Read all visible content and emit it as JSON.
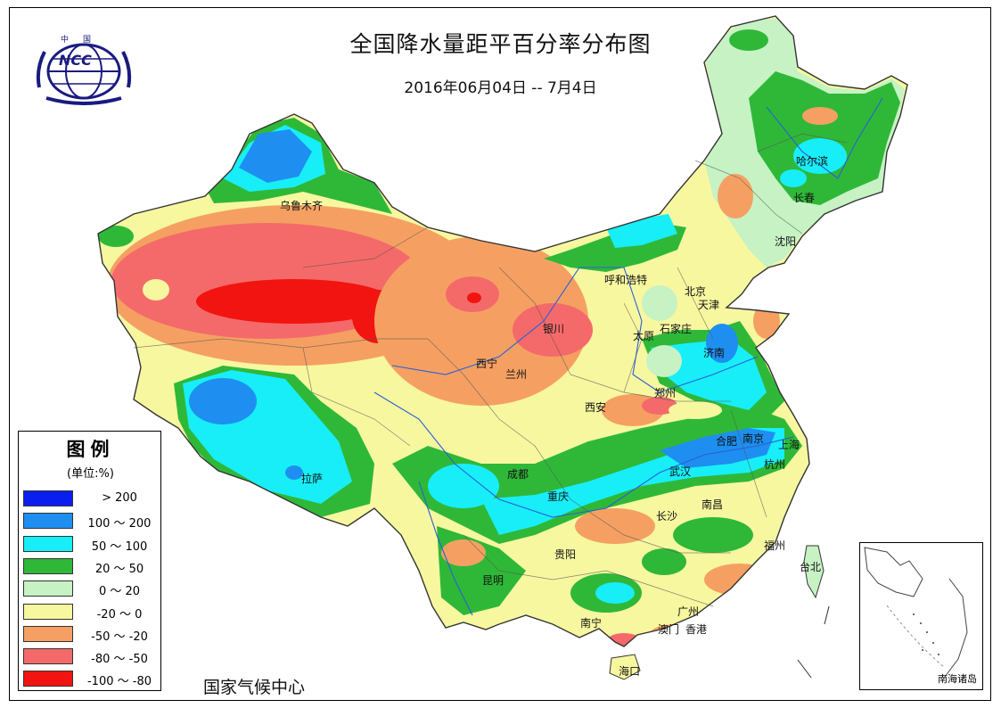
{
  "header": {
    "title": "全国降水量距平百分率分布图",
    "subtitle": "2016年06月04日 -- 7月4日",
    "logo_text": "NCC",
    "logo_top": "中国"
  },
  "legend": {
    "title": "图例",
    "unit": "(单位:%)",
    "items": [
      {
        "label": "> 200",
        "color": "#0a1ef0"
      },
      {
        "label": "100 ～ 200",
        "color": "#1e8ff0"
      },
      {
        "label": "50 ～ 100",
        "color": "#18eef8"
      },
      {
        "label": "20 ～ 50",
        "color": "#2fb838"
      },
      {
        "label": "0 ～ 20",
        "color": "#c6f2c4"
      },
      {
        "label": "-20 ～ 0",
        "color": "#f7f7a0"
      },
      {
        "label": "-50 ～ -20",
        "color": "#f5a062"
      },
      {
        "label": "-80 ～ -50",
        "color": "#f46a6a"
      },
      {
        "label": "-100 ～ -80",
        "color": "#f21410"
      }
    ]
  },
  "cities": [
    {
      "name": "乌鲁木齐"
    },
    {
      "name": "哈尔滨"
    },
    {
      "name": "长春"
    },
    {
      "name": "沈阳"
    },
    {
      "name": "呼和浩特"
    },
    {
      "name": "北京"
    },
    {
      "name": "天津"
    },
    {
      "name": "银川"
    },
    {
      "name": "太原"
    },
    {
      "name": "石家庄"
    },
    {
      "name": "济南"
    },
    {
      "name": "西宁"
    },
    {
      "name": "兰州"
    },
    {
      "name": "郑州"
    },
    {
      "name": "西安"
    },
    {
      "name": "合肥"
    },
    {
      "name": "南京"
    },
    {
      "name": "上海"
    },
    {
      "name": "拉萨"
    },
    {
      "name": "成都"
    },
    {
      "name": "武汉"
    },
    {
      "name": "杭州"
    },
    {
      "name": "重庆"
    },
    {
      "name": "长沙"
    },
    {
      "name": "南昌"
    },
    {
      "name": "贵阳"
    },
    {
      "name": "福州"
    },
    {
      "name": "台北"
    },
    {
      "name": "昆明"
    },
    {
      "name": "南宁"
    },
    {
      "name": "广州"
    },
    {
      "name": "澳门"
    },
    {
      "name": "香港"
    },
    {
      "name": "海口"
    }
  ],
  "inset": {
    "label": "南海诸岛"
  },
  "footer": {
    "org": "国家气候中心"
  }
}
